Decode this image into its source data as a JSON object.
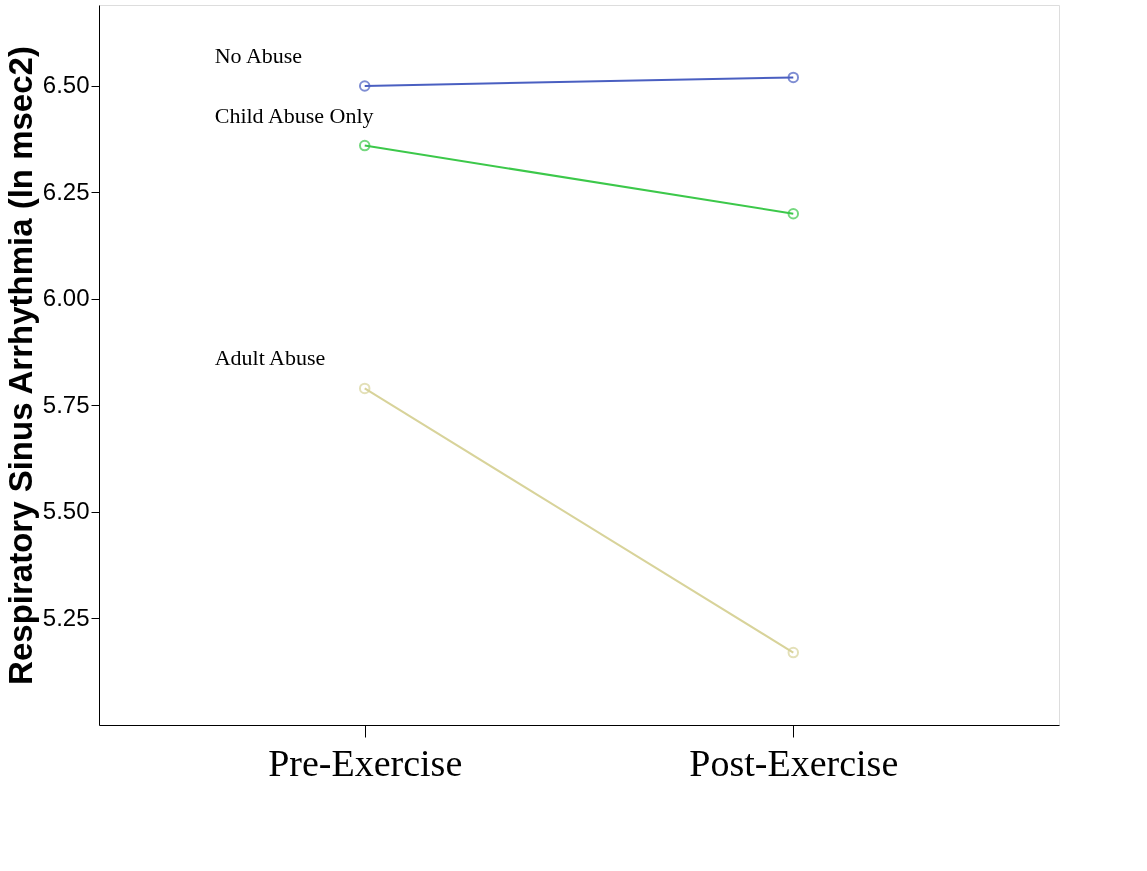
{
  "chart_data": {
    "type": "line",
    "ylabel": "Respiratory Sinus Arrhythmia (ln msec2)",
    "categories": [
      "Pre-Exercise",
      "Post-Exercise"
    ],
    "series": [
      {
        "name": "No Abuse",
        "color": "#4a5fc1",
        "values": [
          6.5,
          6.52
        ]
      },
      {
        "name": "Child Abuse Only",
        "color": "#3cc84a",
        "values": [
          6.36,
          6.2
        ]
      },
      {
        "name": "Adult Abuse",
        "color": "#d8d39a",
        "values": [
          5.79,
          5.17
        ]
      }
    ],
    "ylim": [
      5.0,
      6.69
    ],
    "yticks": [
      5.25,
      {
        "value": 5.5,
        "label": "5.50"
      },
      5.75,
      {
        "value": 6.0,
        "label": "6.00"
      },
      6.25,
      {
        "value": 6.5,
        "label": "6.50"
      }
    ],
    "grid": false,
    "marker": "circle",
    "line_style": "solid"
  }
}
